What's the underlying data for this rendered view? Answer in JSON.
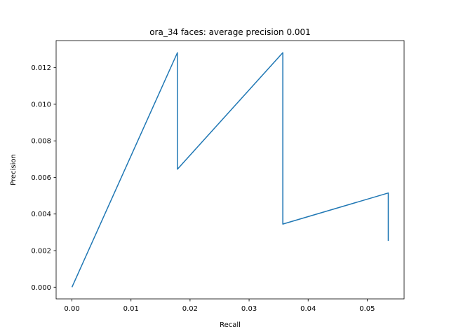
{
  "chart_data": {
    "type": "line",
    "title": "ora_34 faces: average precision 0.001",
    "xlabel": "Recall",
    "ylabel": "Precision",
    "xlim": [
      -0.00268,
      0.05625
    ],
    "ylim": [
      -0.00064,
      0.01348
    ],
    "xticks": [
      0.0,
      0.01,
      0.02,
      0.03,
      0.04,
      0.05
    ],
    "xtick_labels": [
      "0.00",
      "0.01",
      "0.02",
      "0.03",
      "0.04",
      "0.05"
    ],
    "yticks": [
      0.0,
      0.002,
      0.004,
      0.006,
      0.008,
      0.01,
      0.012
    ],
    "ytick_labels": [
      "0.000",
      "0.002",
      "0.004",
      "0.006",
      "0.008",
      "0.010",
      "0.012"
    ],
    "grid": false,
    "series": [
      {
        "color": "#1f77b4",
        "x": [
          0.0,
          0.01786,
          0.01786,
          0.03571,
          0.03571,
          0.05357,
          0.05357
        ],
        "y": [
          0.0,
          0.01282,
          0.00645,
          0.01282,
          0.00345,
          0.00515,
          0.00253
        ]
      }
    ]
  }
}
